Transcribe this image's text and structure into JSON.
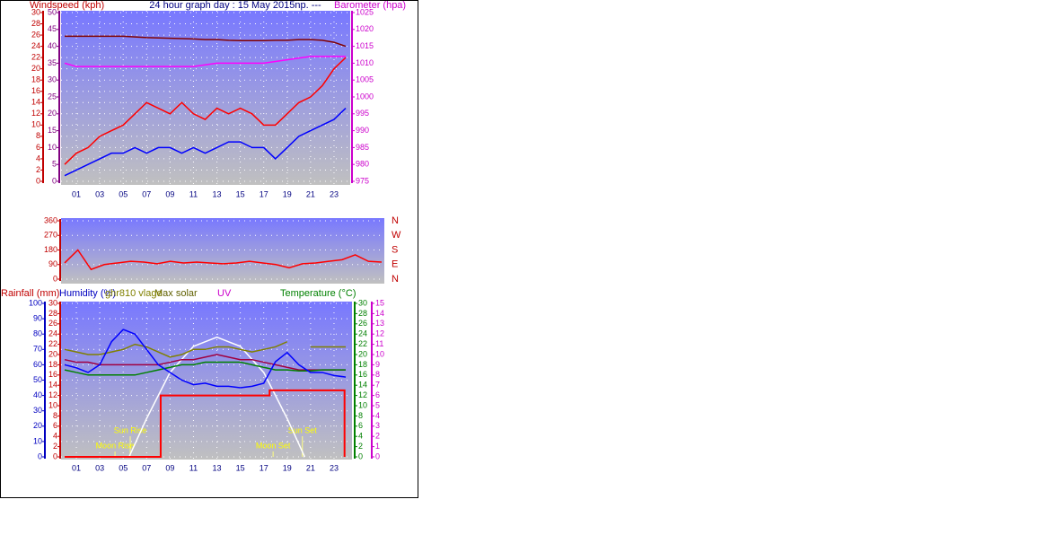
{
  "chart_data": [
    {
      "type": "line",
      "title": "24 hour graph day : 15 May 2015np. ---",
      "x": [
        0,
        1,
        2,
        3,
        4,
        5,
        6,
        7,
        8,
        9,
        10,
        11,
        12,
        13,
        14,
        15,
        16,
        17,
        18,
        19,
        20,
        21,
        22,
        23,
        24
      ],
      "xlim": [
        0,
        24
      ],
      "xticks": [
        {
          "value": 1,
          "label": "01"
        },
        {
          "value": 3,
          "label": "03"
        },
        {
          "value": 5,
          "label": "05"
        },
        {
          "value": 7,
          "label": "07"
        },
        {
          "value": 9,
          "label": "09"
        },
        11,
        13,
        15,
        17,
        19,
        21,
        23
      ],
      "grid": true,
      "axes": [
        {
          "name": "Windspeed (kph)",
          "color": "#c00000",
          "lim": [
            0,
            30
          ],
          "ticks": [
            0,
            2,
            4,
            6,
            8,
            10,
            12,
            14,
            16,
            18,
            20,
            22,
            24,
            26,
            28,
            30
          ]
        },
        {
          "color": "#800080",
          "lim": [
            0,
            50
          ],
          "ticks": [
            0,
            5,
            10,
            15,
            20,
            25,
            30,
            35,
            40,
            45,
            50
          ]
        },
        {
          "name": "Barometer (hpa)",
          "color": "#cc00cc",
          "lim": [
            975,
            1025
          ],
          "ticks": [
            975,
            980,
            985,
            990,
            995,
            1000,
            1005,
            1010,
            1015,
            1020,
            1025
          ]
        }
      ],
      "series": [
        {
          "axis": 0,
          "color": "#ff0000",
          "values": [
            3,
            5,
            6,
            8,
            9,
            10,
            12,
            14,
            13,
            12,
            14,
            12,
            11,
            13,
            12,
            13,
            12,
            10,
            10,
            12,
            14,
            15,
            17,
            20,
            22
          ]
        },
        {
          "axis": 0,
          "color": "#0000ff",
          "values": [
            1,
            2,
            3,
            4,
            5,
            5,
            6,
            5,
            6,
            6,
            5,
            6,
            5,
            6,
            7,
            7,
            6,
            6,
            4,
            6,
            8,
            9,
            10,
            11,
            13
          ]
        },
        {
          "axis": 2,
          "color": "#800000",
          "values": [
            1018,
            1018,
            1018,
            1018,
            1018,
            1018,
            1017.8,
            1017.6,
            1017.5,
            1017.4,
            1017.3,
            1017.2,
            1017,
            1017,
            1016.8,
            1016.7,
            1016.7,
            1016.7,
            1016.8,
            1016.8,
            1017,
            1017,
            1016.8,
            1016.2,
            1015
          ]
        },
        {
          "axis": 2,
          "color": "#ff00ff",
          "values": [
            1010,
            1009,
            1009,
            1009,
            1009,
            1009,
            1009,
            1009,
            1009,
            1009,
            1009,
            1009,
            1009.5,
            1010,
            1010,
            1010,
            1010,
            1010,
            1010.5,
            1011,
            1011.5,
            1012,
            1012,
            1012,
            1012
          ]
        }
      ]
    },
    {
      "type": "line",
      "x": [
        0,
        1,
        2,
        3,
        4,
        5,
        6,
        7,
        8,
        9,
        10,
        11,
        12,
        13,
        14,
        15,
        16,
        17,
        18,
        19,
        20,
        21,
        22,
        23,
        24
      ],
      "xlim": [
        0,
        24
      ],
      "grid": true,
      "axes": [
        {
          "color": "#c00000",
          "lim": [
            0,
            360
          ],
          "ticks": [
            0,
            90,
            180,
            270,
            360
          ]
        },
        {
          "color": "#c00000",
          "lim": [
            0,
            360
          ],
          "ticks": [
            {
              "value": 0,
              "label": "N"
            },
            {
              "value": 90,
              "label": "E"
            },
            {
              "value": 180,
              "label": "S"
            },
            {
              "value": 270,
              "label": "W"
            },
            {
              "value": 360,
              "label": "N"
            }
          ]
        }
      ],
      "series": [
        {
          "axis": 0,
          "color": "#ff0000",
          "values": [
            100,
            180,
            60,
            90,
            100,
            110,
            105,
            95,
            110,
            100,
            105,
            100,
            95,
            100,
            110,
            100,
            90,
            70,
            95,
            100,
            110,
            120,
            150,
            110,
            105
          ]
        }
      ]
    },
    {
      "type": "line",
      "x": [
        0,
        1,
        2,
        3,
        4,
        5,
        6,
        7,
        8,
        9,
        10,
        11,
        12,
        13,
        14,
        15,
        16,
        17,
        18,
        19,
        20,
        21,
        22,
        23,
        24
      ],
      "xlim": [
        0,
        24
      ],
      "xticks": [
        {
          "value": 1,
          "label": "01"
        },
        {
          "value": 3,
          "label": "03"
        },
        {
          "value": 5,
          "label": "05"
        },
        {
          "value": 7,
          "label": "07"
        },
        {
          "value": 9,
          "label": "09"
        },
        11,
        13,
        15,
        17,
        19,
        21,
        23
      ],
      "grid": true,
      "axes": [
        {
          "name": "Humidity (%)",
          "color": "#0000c0",
          "lim": [
            0,
            100
          ],
          "ticks": [
            0,
            10,
            20,
            30,
            40,
            50,
            60,
            70,
            80,
            90,
            100
          ]
        },
        {
          "name": "Rainfall (mm)",
          "color": "#c00000",
          "lim": [
            0,
            30
          ],
          "ticks": [
            0,
            2,
            4,
            6,
            8,
            10,
            12,
            14,
            16,
            18,
            20,
            22,
            24,
            26,
            28,
            30
          ]
        },
        {
          "name": "Temperature (°C)",
          "color": "#008000",
          "lim": [
            0,
            30
          ],
          "ticks": [
            0,
            2,
            4,
            6,
            8,
            10,
            12,
            14,
            16,
            18,
            20,
            22,
            24,
            26,
            28,
            30
          ]
        },
        {
          "name": "UV",
          "color": "#cc00cc",
          "lim": [
            0,
            15
          ],
          "ticks": [
            0,
            1,
            2,
            3,
            4,
            5,
            6,
            7,
            8,
            9,
            10,
            11,
            12,
            13,
            14,
            15
          ]
        }
      ],
      "series": [
        {
          "name": "Max solar",
          "axis": 0,
          "color": "#ffffff",
          "x": [
            5.5,
            7,
            9,
            11,
            13,
            15,
            17,
            19,
            20.5
          ],
          "values": [
            0,
            25,
            55,
            72,
            78,
            72,
            55,
            25,
            0
          ]
        },
        {
          "axis": 1,
          "color": "#ff0000",
          "step": true,
          "x": [
            0,
            8.2,
            17.5,
            23.9
          ],
          "values": [
            0,
            12,
            13,
            0
          ]
        },
        {
          "axis": 2,
          "color": "#a00040",
          "values": [
            19,
            18.5,
            18.5,
            18,
            18,
            18,
            18,
            18,
            18,
            18.5,
            19,
            19,
            19.5,
            20,
            19.5,
            19,
            19,
            18.5,
            18,
            17.5,
            17,
            17,
            17,
            17,
            17
          ]
        },
        {
          "name": "ghr810 vlage",
          "axis": 2,
          "color": "#808000",
          "values": [
            21,
            20.5,
            20,
            20,
            20.5,
            21,
            22,
            21.5,
            20.5,
            19.5,
            20,
            21,
            21,
            21.5,
            21.5,
            21,
            20.5,
            21,
            21.5,
            22.5,
            null,
            21.5,
            21.5,
            21.5,
            21.5
          ]
        },
        {
          "axis": 2,
          "color": "#008000",
          "values": [
            17,
            16.5,
            16,
            16,
            16,
            16,
            16,
            16.5,
            17,
            17.5,
            18,
            18,
            18.5,
            18.5,
            18.5,
            18.5,
            18,
            17.5,
            17,
            17,
            16.8,
            16.8,
            17,
            17,
            17
          ]
        },
        {
          "axis": 0,
          "color": "#0000ff",
          "values": [
            60,
            58,
            55,
            60,
            75,
            83,
            80,
            70,
            60,
            55,
            50,
            47,
            48,
            46,
            46,
            45,
            46,
            48,
            62,
            68,
            60,
            55,
            55,
            53,
            52
          ]
        }
      ],
      "annotations": [
        {
          "text": "Sun Rise",
          "x": 5.6
        },
        {
          "text": "Moon Rise",
          "x": 4.3
        },
        {
          "text": "Moon Set",
          "x": 17.8
        },
        {
          "text": "Sun Set",
          "x": 20.3
        }
      ]
    }
  ]
}
